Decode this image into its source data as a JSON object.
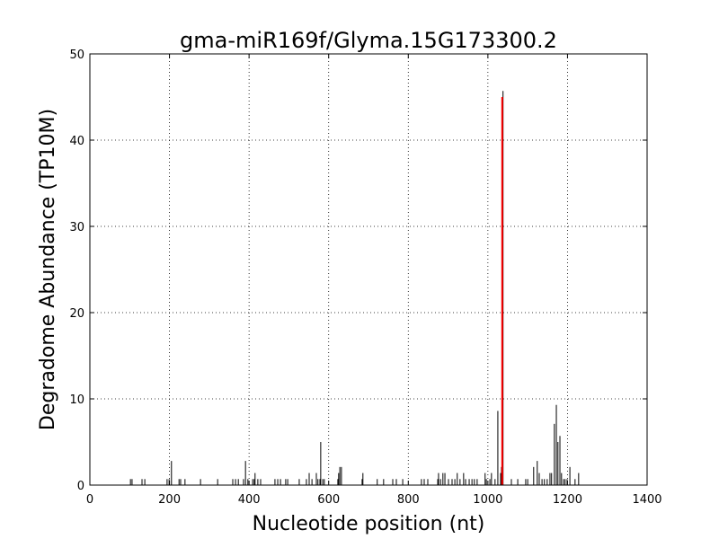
{
  "chart_data": {
    "type": "bar",
    "title": "gma-miR169f/Glyma.15G173300.2",
    "xlabel": "Nucleotide position (nt)",
    "ylabel": "Degradome Abundance (TP10M)",
    "xlim": [
      0,
      1400
    ],
    "xticks": [
      0,
      200,
      400,
      600,
      800,
      1000,
      1200,
      1400
    ],
    "ylim": [
      0,
      50
    ],
    "yticks": [
      0,
      10,
      20,
      30,
      40,
      50
    ],
    "grid": true,
    "series": [
      {
        "color": "#000000",
        "x": [
          102,
          106,
          131,
          138,
          194,
          199,
          205,
          224,
          228,
          239,
          278,
          321,
          359,
          366,
          373,
          386,
          391,
          397,
          409,
          413,
          415,
          422,
          429,
          465,
          472,
          479,
          492,
          497,
          526,
          544,
          551,
          558,
          569,
          573,
          578,
          580,
          585,
          589,
          623,
          625,
          628,
          632,
          684,
          686,
          722,
          738,
          761,
          770,
          786,
          833,
          840,
          849,
          874,
          876,
          881,
          887,
          892,
          901,
          910,
          917,
          923,
          930,
          939,
          944,
          953,
          960,
          966,
          973,
          993,
          996,
          1005,
          1009,
          1018,
          1025,
          1032,
          1034,
          1038,
          1059,
          1075,
          1095,
          1100,
          1115,
          1124,
          1129,
          1136,
          1142,
          1149,
          1156,
          1160,
          1167,
          1172,
          1176,
          1181,
          1185,
          1190,
          1194,
          1199,
          1206,
          1219,
          1228
        ],
        "values": [
          0.7,
          0.7,
          0.7,
          0.7,
          0.7,
          0.7,
          2.8,
          0.7,
          0.7,
          0.7,
          0.7,
          0.7,
          0.7,
          0.7,
          0.7,
          0.7,
          2.8,
          0.7,
          0.7,
          0.7,
          1.4,
          0.7,
          0.7,
          0.7,
          0.7,
          0.7,
          0.7,
          0.7,
          0.7,
          0.7,
          1.4,
          0.7,
          1.4,
          0.7,
          0.7,
          5.0,
          0.7,
          0.7,
          0.7,
          1.4,
          2.1,
          2.1,
          0.7,
          1.4,
          0.7,
          0.7,
          0.7,
          0.7,
          0.7,
          0.7,
          0.7,
          0.7,
          0.7,
          1.4,
          0.7,
          1.4,
          1.4,
          0.7,
          0.7,
          0.7,
          1.4,
          0.7,
          1.4,
          0.7,
          0.7,
          0.7,
          0.7,
          0.7,
          1.4,
          0.7,
          0.7,
          1.4,
          0.7,
          8.6,
          1.4,
          2.1,
          45.7,
          0.7,
          0.7,
          0.7,
          0.7,
          2.1,
          2.8,
          1.4,
          0.7,
          0.7,
          0.7,
          1.4,
          1.4,
          7.1,
          9.3,
          5.0,
          5.7,
          1.4,
          0.7,
          0.7,
          0.7,
          2.1,
          0.7,
          1.4
        ]
      },
      {
        "color": "#ff0000",
        "x": [
          1036
        ],
        "values": [
          45.0
        ]
      }
    ]
  }
}
